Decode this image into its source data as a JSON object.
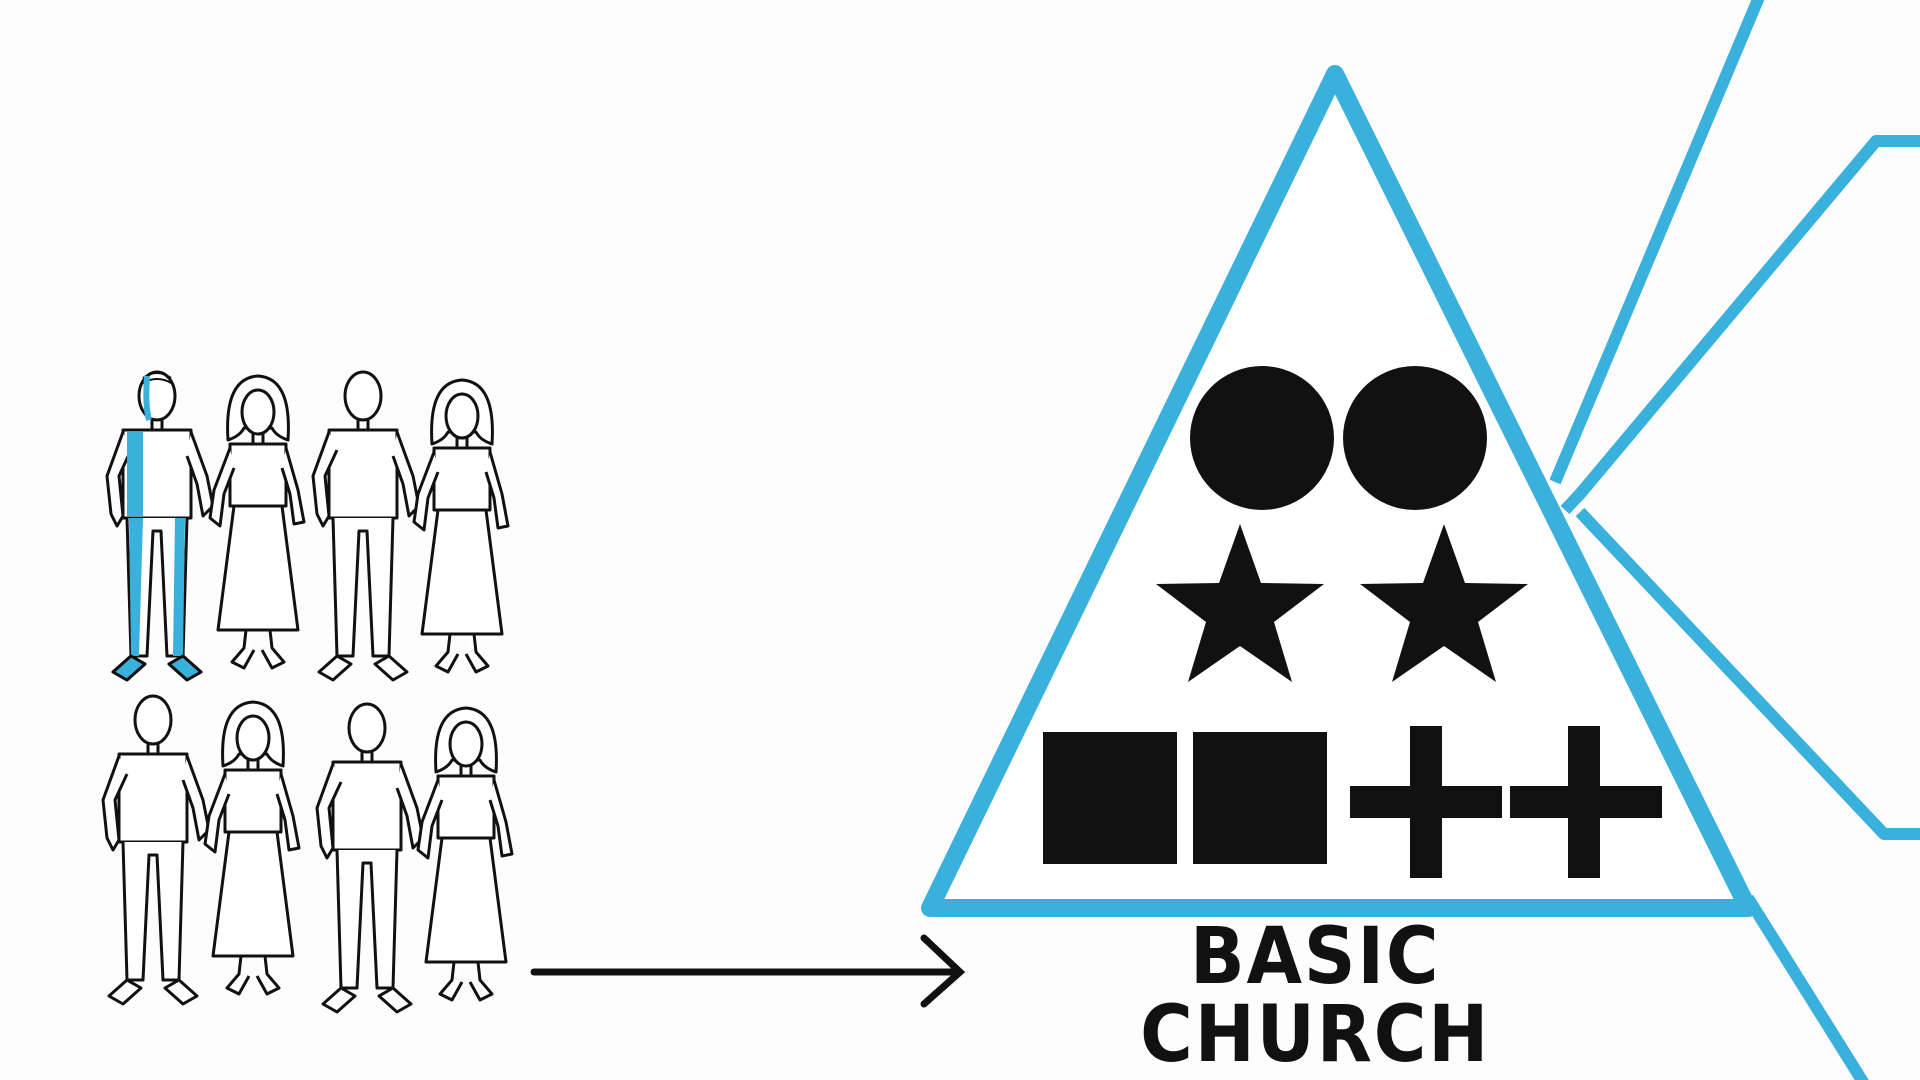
{
  "diagram": {
    "caption": "BASIC CHURCH",
    "colors": {
      "accent": "#3ab0dc",
      "ink": "#111111",
      "background": "#fdfdfd"
    },
    "people": [
      {
        "role": "man",
        "highlighted": true
      },
      {
        "role": "woman"
      },
      {
        "role": "man"
      },
      {
        "role": "woman"
      },
      {
        "role": "man"
      },
      {
        "role": "woman"
      },
      {
        "role": "man"
      },
      {
        "role": "woman"
      }
    ],
    "symbols": [
      "circle",
      "circle",
      "star",
      "star",
      "square",
      "square",
      "plus",
      "plus"
    ],
    "connector": "arrow-right"
  }
}
